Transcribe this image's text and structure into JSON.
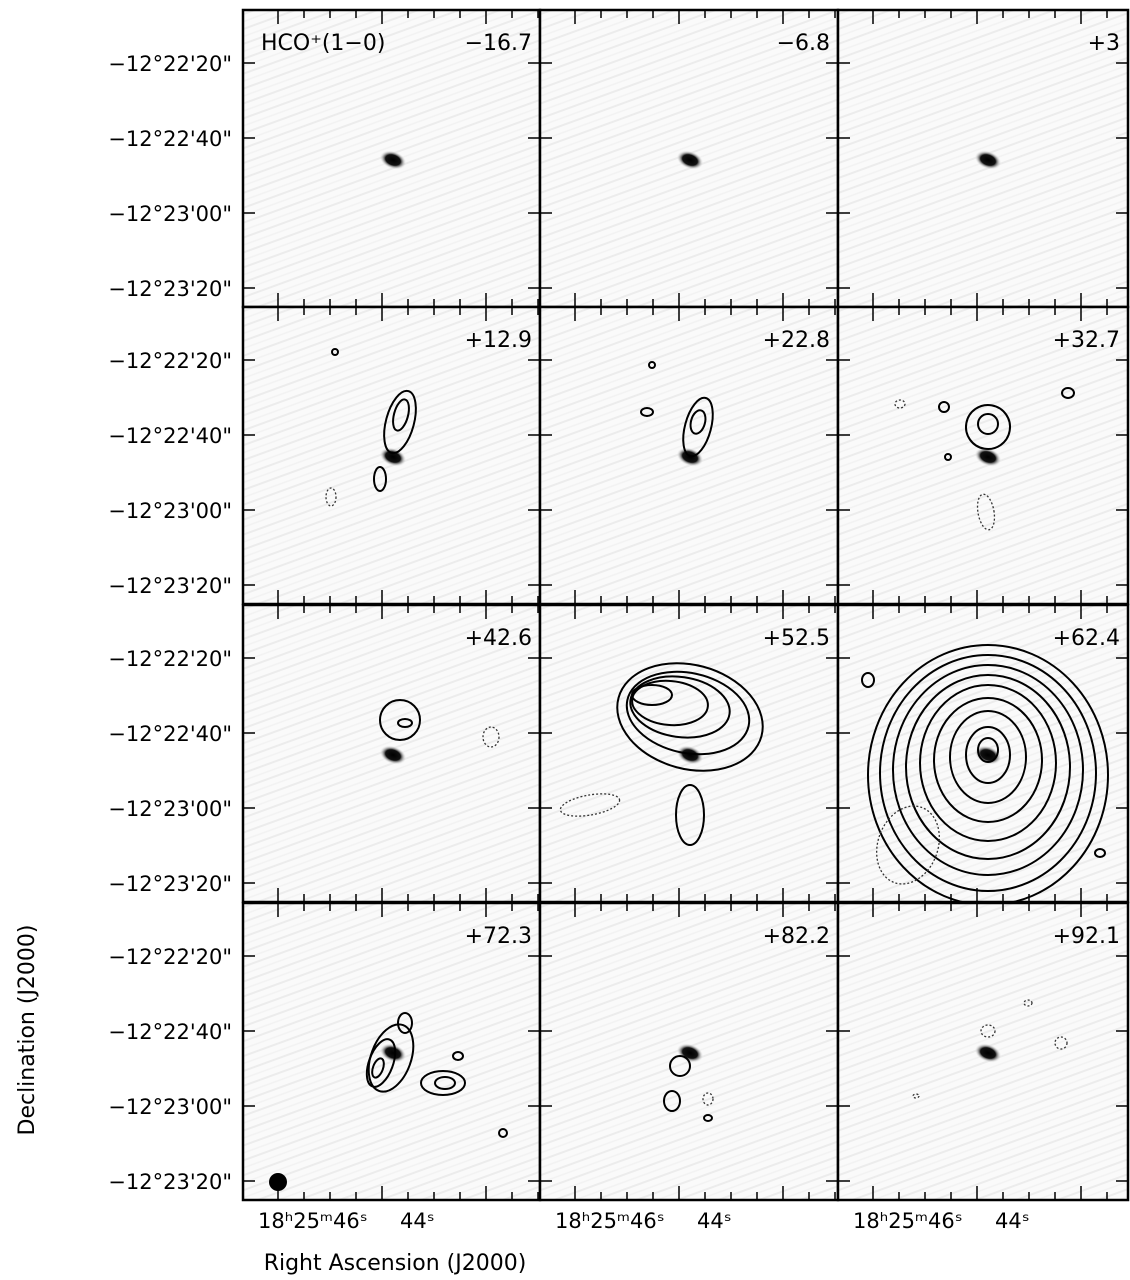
{
  "figure": {
    "line_label": "HCO⁺(1−0)",
    "panels": [
      "−16.7",
      "−6.8",
      "+3",
      "+12.9",
      "+22.8",
      "+32.7",
      "+42.6",
      "+52.5",
      "+62.4",
      "+72.3",
      "+82.2",
      "+92.1"
    ],
    "y_tick_labels": [
      "−12°22'20\"",
      "−12°22'40\"",
      "−12°23'00\"",
      "−12°23'20\""
    ],
    "x_tick_labels": [
      "18ʰ25ᵐ46ˢ",
      "44ˢ"
    ],
    "x_label": "Right Ascension (J2000)",
    "y_label": "Declination (J2000)"
  }
}
